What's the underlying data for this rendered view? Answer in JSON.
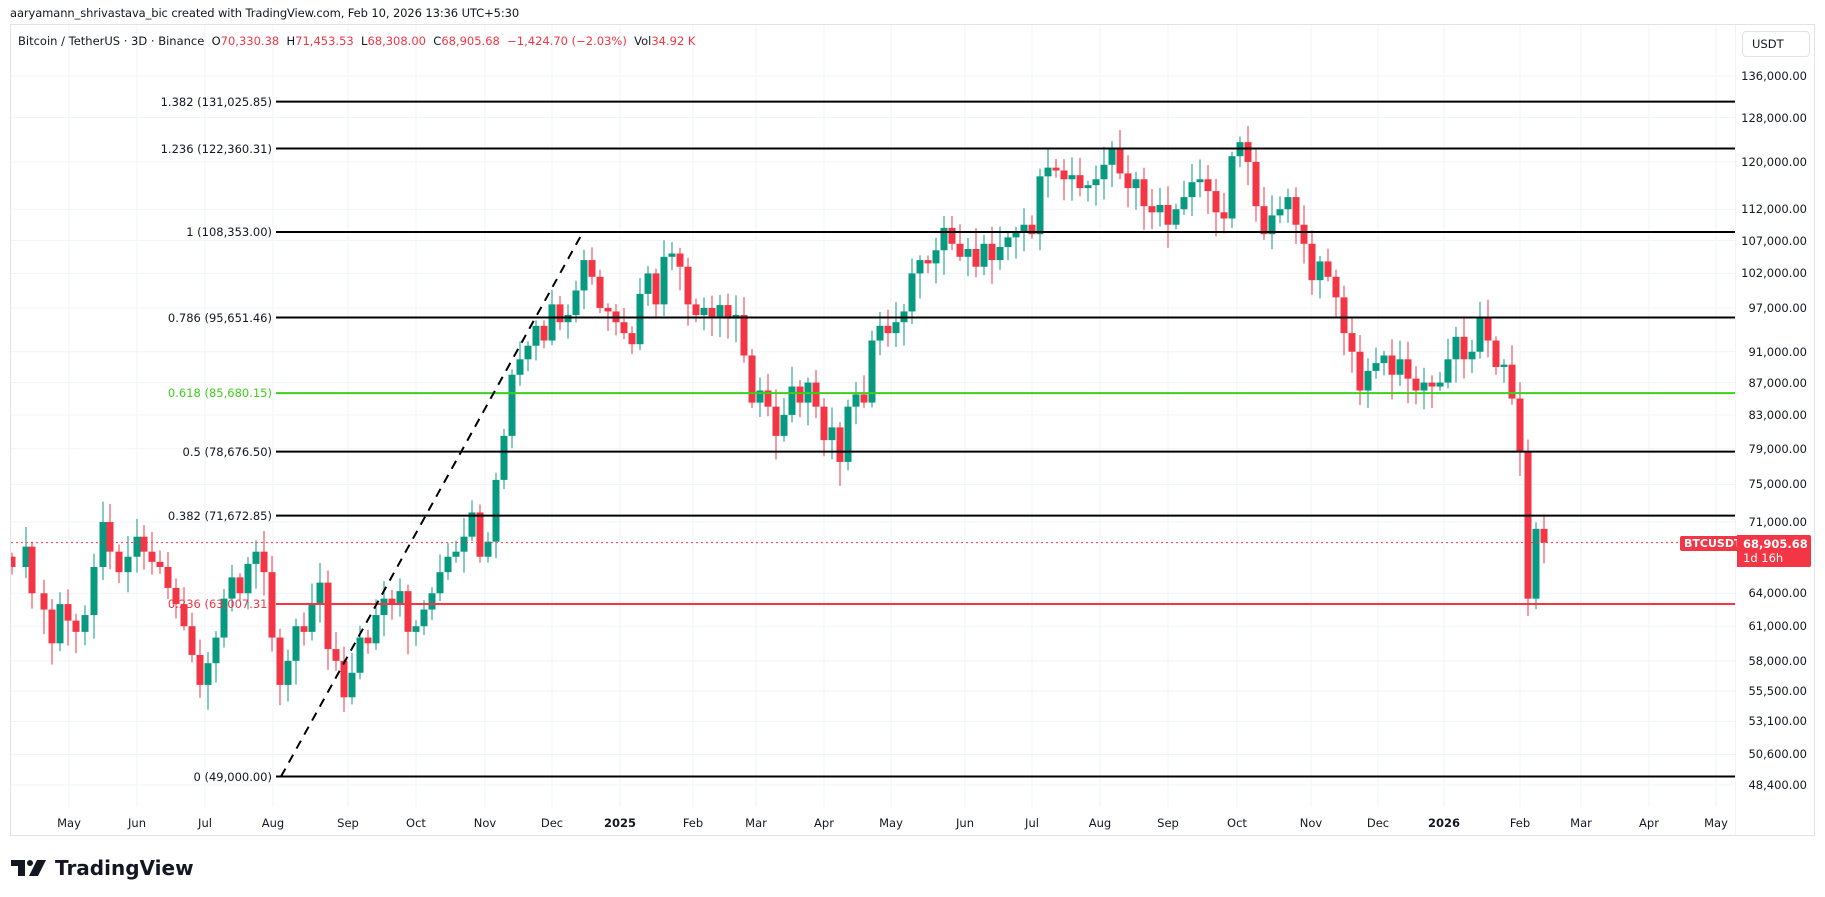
{
  "attribution": "aaryamann_shrivastava_bic created with TradingView.com, Feb 10, 2026 13:36 UTC+5:30",
  "legend": {
    "symbol": "Bitcoin / TetherUS · 3D · Binance",
    "open_label": "O",
    "open": "70,330.38",
    "high_label": "H",
    "high": "71,453.53",
    "low_label": "L",
    "low": "68,308.00",
    "close_label": "C",
    "close": "68,905.68",
    "change": "−1,424.70 (−2.03%)",
    "vol_label": "Vol",
    "vol": "34.92 K"
  },
  "currency_button": "USDT",
  "price_badge": {
    "symbol": "BTCUSDT",
    "price": "68,905.68",
    "countdown": "1d 16h"
  },
  "logo_text": "TradingView",
  "colors": {
    "up": "#089981",
    "down": "#F23645",
    "fib_line": "#000000",
    "fib_618": "#3ecf1a",
    "fib_236": "#F23645",
    "grid": "#f0f3fa"
  },
  "chart_data": {
    "type": "candlestick",
    "title": "Bitcoin / TetherUS · 3D · Binance",
    "xlabel": "",
    "ylabel": "USDT",
    "y_scale": "log",
    "ylim": [
      47500,
      138000
    ],
    "price_axis_ticks": [
      "136,000.00",
      "128,000.00",
      "120,000.00",
      "112,000.00",
      "107,000.00",
      "102,000.00",
      "97,000.00",
      "91,000.00",
      "87,000.00",
      "83,000.00",
      "79,000.00",
      "75,000.00",
      "71,000.00",
      "64,000.00",
      "61,000.00",
      "58,000.00",
      "55,500.00",
      "53,100.00",
      "50,600.00",
      "48,400.00"
    ],
    "time_axis_ticks": [
      "May",
      "Jun",
      "Jul",
      "Aug",
      "Sep",
      "Oct",
      "Nov",
      "Dec",
      "2025",
      "Feb",
      "Mar",
      "Apr",
      "May",
      "Jun",
      "Jul",
      "Aug",
      "Sep",
      "Oct",
      "Nov",
      "Dec",
      "2026",
      "Feb",
      "Mar",
      "Apr",
      "May"
    ],
    "fib_levels": [
      {
        "ratio": "1.382",
        "price": "131,025.85",
        "label": "1.382 (131,025.85)",
        "color": "#000000"
      },
      {
        "ratio": "1.236",
        "price": "122,360.31",
        "label": "1.236 (122,360.31)",
        "color": "#000000"
      },
      {
        "ratio": "1",
        "price": "108,353.00",
        "label": "1 (108,353.00)",
        "color": "#000000"
      },
      {
        "ratio": "0.786",
        "price": "95,651.46",
        "label": "0.786 (95,651.46)",
        "color": "#000000"
      },
      {
        "ratio": "0.618",
        "price": "85,680.15",
        "label": "0.618 (85,680.15)",
        "color": "#3ecf1a"
      },
      {
        "ratio": "0.5",
        "price": "78,676.50",
        "label": "0.5 (78,676.50)",
        "color": "#000000"
      },
      {
        "ratio": "0.382",
        "price": "71,672.85",
        "label": "0.382 (71,672.85)",
        "color": "#000000"
      },
      {
        "ratio": "0.236",
        "price": "63,007.31",
        "label": "0.236 (63,007.31)",
        "color": "#F23645"
      },
      {
        "ratio": "0",
        "price": "49,000.00",
        "label": "0 (49,000.00)",
        "color": "#000000"
      }
    ],
    "trendline": {
      "from": {
        "date": "Aug 2024",
        "price": 49000
      },
      "to": {
        "date": "Dec 2024",
        "price": 108353
      },
      "style": "dashed"
    },
    "last_price": 68905.68,
    "approx_candles_3d_close": [
      {
        "period": "Apr 2024",
        "close": 64000
      },
      {
        "period": "May 2024",
        "close": 67000
      },
      {
        "period": "Jun 2024",
        "close": 61000
      },
      {
        "period": "Jul 2024",
        "close": 66000
      },
      {
        "period": "Aug 2024",
        "close": 59000
      },
      {
        "period": "Sep 2024",
        "close": 63500
      },
      {
        "period": "Oct 2024",
        "close": 69000
      },
      {
        "period": "Nov 2024",
        "close": 96000
      },
      {
        "period": "Dec 2024",
        "close": 93500
      },
      {
        "period": "Jan 2025",
        "close": 102000
      },
      {
        "period": "Feb 2025",
        "close": 84500
      },
      {
        "period": "Mar 2025",
        "close": 82500
      },
      {
        "period": "Apr 2025",
        "close": 94000
      },
      {
        "period": "May 2025",
        "close": 104500
      },
      {
        "period": "Jun 2025",
        "close": 107000
      },
      {
        "period": "Jul 2025",
        "close": 117500
      },
      {
        "period": "Aug 2025",
        "close": 109000
      },
      {
        "period": "Sep 2025",
        "close": 114000
      },
      {
        "period": "Oct 2025",
        "close": 109500
      },
      {
        "period": "Nov 2025",
        "close": 91000
      },
      {
        "period": "Dec 2025",
        "close": 87500
      },
      {
        "period": "Jan 2026",
        "close": 84000
      },
      {
        "period": "Feb 2026",
        "close": 68905.68
      }
    ]
  }
}
